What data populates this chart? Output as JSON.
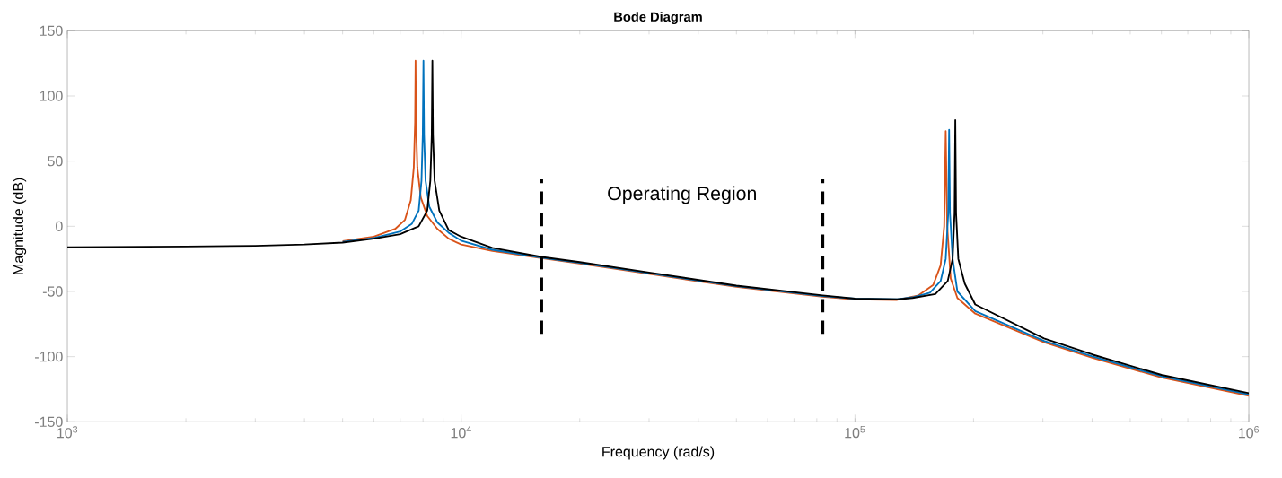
{
  "chart_data": {
    "type": "line",
    "title": "Bode Diagram",
    "xlabel": "Frequency  (rad/s)",
    "ylabel": "Magnitude (dB)",
    "log": "x",
    "xlim": [
      1000,
      1000000
    ],
    "ylim": [
      -150,
      150
    ],
    "xticks": [
      {
        "value": 1000,
        "label": "10$^{3}$"
      },
      {
        "value": 10000,
        "label": "10$^{4}$"
      },
      {
        "value": 100000,
        "label": "10$^{5}$"
      },
      {
        "value": 1000000,
        "label": "10$^{6}$"
      }
    ],
    "yticks": [
      -150,
      -100,
      -50,
      0,
      50,
      100,
      150
    ],
    "series": [
      {
        "color": "#d95319",
        "x": [
          5000,
          6000,
          6800,
          7200,
          7450,
          7580,
          7640,
          7660,
          7680,
          7740,
          7900,
          8200,
          8700,
          9300,
          10000,
          12000,
          16000,
          20000,
          30000,
          50000,
          82800,
          100000,
          128000,
          145000,
          158000,
          165000,
          168500,
          170000,
          171500,
          175000,
          182000,
          202000,
          302000,
          402000,
          600000,
          1000000
        ],
        "values": [
          -11.5,
          -8,
          -2,
          5,
          20,
          45,
          80,
          127,
          80,
          45,
          22,
          8,
          -2,
          -9.5,
          -14,
          -19,
          -24.5,
          -28.5,
          -36.5,
          -46.5,
          -54,
          -56,
          -56.5,
          -53,
          -45,
          -30,
          0,
          73,
          0,
          -40,
          -55,
          -67,
          -89,
          -101,
          -116,
          -130
        ]
      },
      {
        "color": "#0072bd",
        "x": [
          5000,
          6000,
          7000,
          7500,
          7800,
          7930,
          7990,
          8020,
          8050,
          8120,
          8300,
          8700,
          9300,
          10000,
          12000,
          16000,
          20000,
          30000,
          50000,
          82800,
          100000,
          128000,
          140000,
          155000,
          165000,
          170000,
          172500,
          173400,
          174300,
          177000,
          182000,
          202000,
          302000,
          402000,
          600000,
          1000000
        ],
        "values": [
          -12,
          -9,
          -4,
          2,
          12,
          35,
          70,
          127,
          70,
          35,
          15,
          3,
          -5,
          -11,
          -18,
          -24,
          -28,
          -36,
          -46,
          -53.5,
          -55.5,
          -56,
          -54.5,
          -51,
          -42,
          -25,
          10,
          74,
          10,
          -25,
          -50,
          -65,
          -88,
          -100,
          -115,
          -129
        ]
      },
      {
        "color": "#000000",
        "x": [
          1000,
          2000,
          3000,
          4000,
          5000,
          6000,
          7000,
          7800,
          8200,
          8350,
          8420,
          8450,
          8480,
          8560,
          8800,
          9300,
          10000,
          12000,
          16000,
          20000,
          30000,
          50000,
          82800,
          100000,
          128000,
          140000,
          160000,
          172000,
          177000,
          179000,
          179800,
          180600,
          183000,
          190000,
          202000,
          302000,
          402000,
          600000,
          1000000
        ],
        "values": [
          -16,
          -15.5,
          -15,
          -14,
          -12.5,
          -9.5,
          -6,
          0,
          12,
          35,
          70,
          127,
          70,
          35,
          12,
          -3,
          -8,
          -16.5,
          -23.5,
          -27.5,
          -35.5,
          -45.5,
          -53,
          -55.5,
          -56,
          -55,
          -52,
          -42,
          -25,
          10,
          81.5,
          10,
          -25,
          -44,
          -60,
          -86,
          -98.5,
          -114,
          -128
        ]
      }
    ],
    "ref_lines": [
      {
        "axis": "x",
        "value": 16000,
        "color": "#000000",
        "line_style": "dashed"
      },
      {
        "axis": "x",
        "value": 82800,
        "color": "#000000",
        "line_style": "dashed"
      }
    ],
    "annotations": [
      "Operating Region"
    ]
  }
}
